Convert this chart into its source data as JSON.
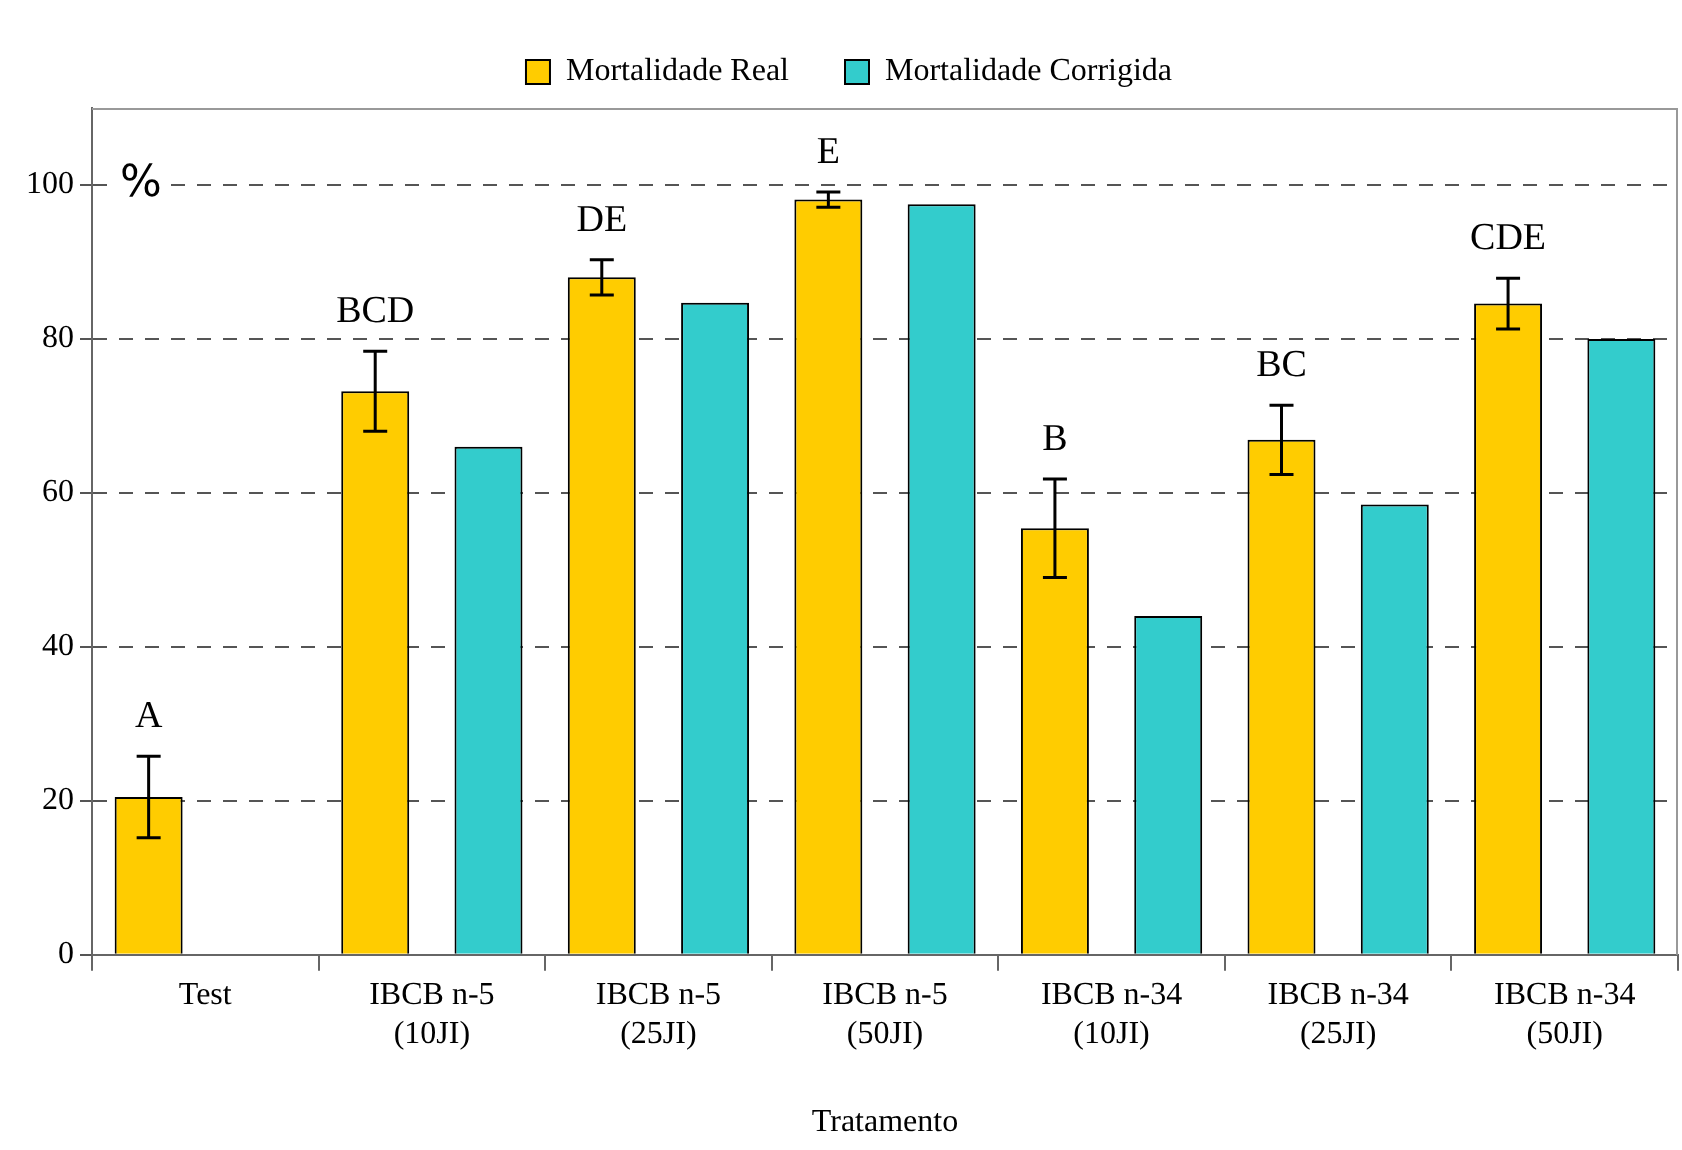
{
  "chart_data": {
    "type": "bar",
    "xlabel": "Tratamento",
    "categories": [
      "Test",
      "IBCB n-5 (10JI)",
      "IBCB n-5 (25JI)",
      "IBCB n-5 (50JI)",
      "IBCB n-34 (10JI)",
      "IBCB n-34 (25JI)",
      "IBCB n-34 (50JI)"
    ],
    "series": [
      {
        "name": "Mortalidade Real",
        "color": "#ffcc00",
        "values": [
          20.5,
          73.2,
          88,
          98.1,
          55.4,
          66.9,
          84.6
        ],
        "errors": [
          5.3,
          5.2,
          2.3,
          1,
          6.4,
          4.5,
          3.3
        ]
      },
      {
        "name": "Mortalidade Corrigida",
        "color": "#33cccc",
        "values": [
          null,
          66,
          84.7,
          97.5,
          44,
          58.5,
          80
        ]
      }
    ],
    "ylim": [
      0,
      110
    ],
    "yticks": [
      0,
      20,
      40,
      60,
      80,
      100
    ],
    "grid": "y",
    "legend": "top",
    "annotations": [
      "%",
      "A",
      "BCD",
      "DE",
      "E",
      "B",
      "BC",
      "CDE"
    ]
  }
}
